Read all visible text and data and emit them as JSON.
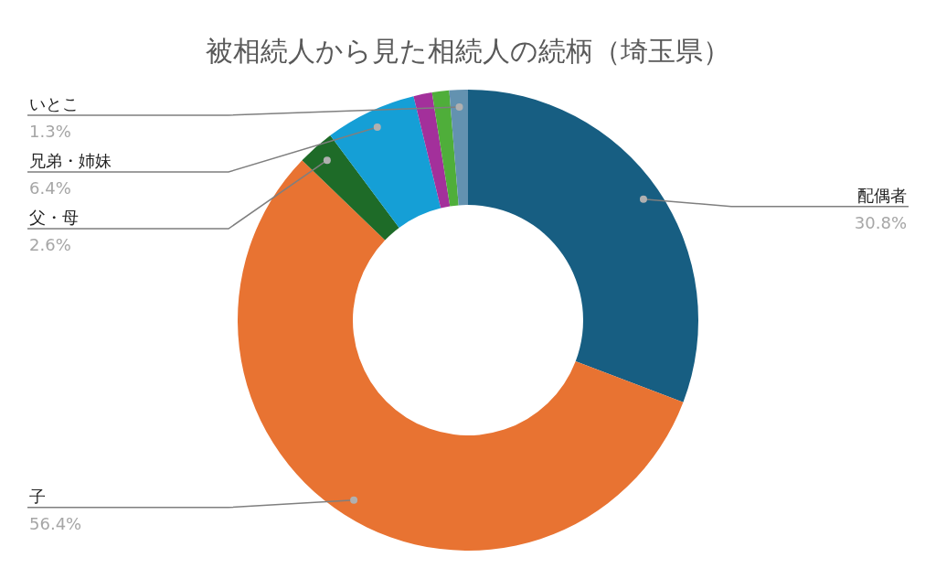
{
  "chart_data": {
    "type": "donut",
    "title": "被相続人から見た相続人の続柄（埼玉県）",
    "categories": [
      "配偶者",
      "子",
      "父・母",
      "兄弟・姉妹",
      null,
      null,
      "いとこ"
    ],
    "values": [
      30.8,
      56.4,
      2.6,
      6.4,
      1.3,
      1.2,
      1.3
    ],
    "colors": [
      "#175e82",
      "#e87332",
      "#1e6b28",
      "#159fd6",
      "#a3309b",
      "#4fae3a",
      "#6392b0"
    ],
    "value_labels": [
      "30.8%",
      "56.4%",
      "2.6%",
      "6.4%",
      null,
      null,
      "1.3%"
    ]
  }
}
